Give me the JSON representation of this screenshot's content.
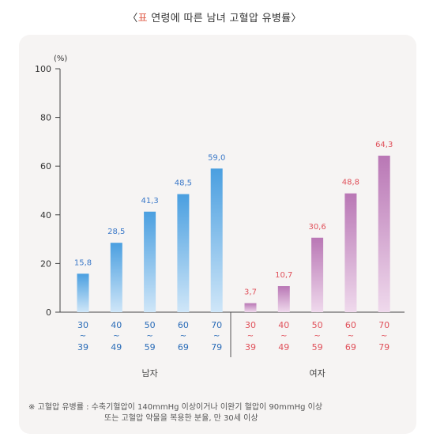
{
  "title": {
    "bracket_open": "〈",
    "prefix": "표",
    "text": " 연령에 따른 남녀 고혈압 유병률",
    "bracket_close": "〉"
  },
  "chart_data": {
    "type": "bar",
    "unit_label": "(%)",
    "ylim": [
      0,
      100
    ],
    "yticks": [
      0,
      20,
      40,
      60,
      80,
      100
    ],
    "grid": false,
    "groups": [
      {
        "name": "남자",
        "color_top": "#4a9fe0",
        "color_bottom": "#cfe6f8",
        "label_color": "#3a78c8",
        "tick_color": "#2a6cb8",
        "categories": [
          [
            "30",
            "~",
            "39"
          ],
          [
            "40",
            "~",
            "49"
          ],
          [
            "50",
            "~",
            "59"
          ],
          [
            "60",
            "~",
            "69"
          ],
          [
            "70",
            "~",
            "79"
          ]
        ],
        "values": [
          15.8,
          28.5,
          41.3,
          48.5,
          59.0
        ],
        "value_labels": [
          "15,8",
          "28,5",
          "41,3",
          "48,5",
          "59,0"
        ]
      },
      {
        "name": "여자",
        "color_top": "#b977b5",
        "color_bottom": "#efd9ec",
        "label_color": "#e0505a",
        "tick_color": "#e0505a",
        "categories": [
          [
            "30",
            "~",
            "39"
          ],
          [
            "40",
            "~",
            "49"
          ],
          [
            "50",
            "~",
            "59"
          ],
          [
            "60",
            "~",
            "69"
          ],
          [
            "70",
            "~",
            "79"
          ]
        ],
        "values": [
          3.7,
          10.7,
          30.6,
          48.8,
          64.3
        ],
        "value_labels": [
          "3,7",
          "10,7",
          "30,6",
          "48,8",
          "64,3"
        ]
      }
    ]
  },
  "footnote": {
    "line1": "※  고혈압 유병률 : 수축기혈압이 140mmHg 이상이거나 이완기 혈압이 90mmHg 이상",
    "line2": "또는 고혈압 약물을 복용한 분율, 만 30세 이상"
  }
}
